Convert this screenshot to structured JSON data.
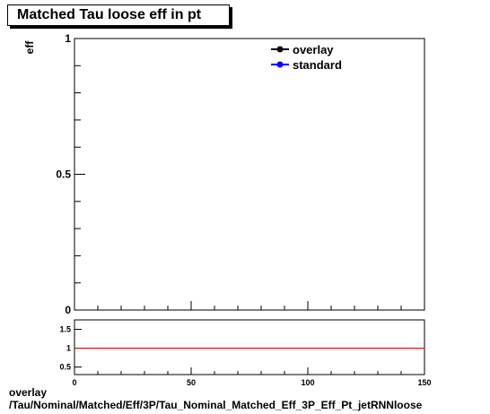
{
  "title": "Matched Tau loose eff in pt",
  "footer": {
    "line1": "overlay",
    "line2": "/Tau/Nominal/Matched/Eff/3P/Tau_Nominal_Matched_Eff_3P_Eff_Pt_jetRNNloose"
  },
  "colors": {
    "overlay": "#000000",
    "standard": "#0000ff",
    "ratio_line": "#cc0000"
  },
  "chart_data": [
    {
      "type": "line",
      "title": "Matched Tau loose eff in pt",
      "ylabel": "eff",
      "xlabel": "",
      "xlim": [
        0,
        150
      ],
      "ylim": [
        0,
        1
      ],
      "yticks": [
        0,
        0.5,
        1
      ],
      "ytick_labels": [
        "0",
        "0.5",
        "1"
      ],
      "legend": {
        "placement": "top-right",
        "entries": [
          "overlay",
          "standard"
        ]
      },
      "series": [
        {
          "name": "overlay",
          "x": [],
          "y": []
        },
        {
          "name": "standard",
          "x": [],
          "y": []
        }
      ]
    },
    {
      "type": "line",
      "xlim": [
        0,
        150
      ],
      "ylim": [
        0.3,
        1.75
      ],
      "xticks": [
        0,
        50,
        100,
        150
      ],
      "xtick_labels": [
        "0",
        "50",
        "100",
        "150"
      ],
      "yticks": [
        0.5,
        1,
        1.5
      ],
      "ytick_labels": [
        "0.5",
        "1",
        "1.5"
      ],
      "reference_line": 1
    }
  ]
}
